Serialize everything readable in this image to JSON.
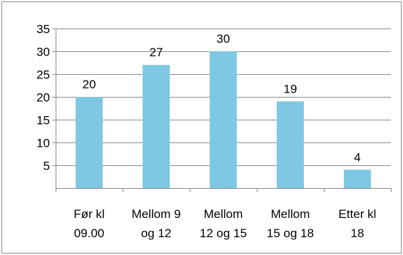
{
  "chart_data": {
    "type": "bar",
    "categories": [
      [
        "Før kl",
        "09.00"
      ],
      [
        "Mellom 9",
        "og 12"
      ],
      [
        "Mellom",
        "12 og 15"
      ],
      [
        "Mellom",
        "15 og 18"
      ],
      [
        "Etter kl",
        "18"
      ]
    ],
    "values": [
      20,
      27,
      30,
      19,
      4
    ],
    "data_labels": [
      "20",
      "27",
      "30",
      "19",
      "4"
    ],
    "ylim": [
      0,
      35
    ],
    "yticks": [
      {
        "value": 5,
        "label": "5"
      },
      {
        "value": 10,
        "label": "10"
      },
      {
        "value": 15,
        "label": "15"
      },
      {
        "value": 20,
        "label": "20"
      },
      {
        "value": 25,
        "label": "25"
      },
      {
        "value": 30,
        "label": "30"
      },
      {
        "value": 35,
        "label": "35"
      }
    ],
    "grid": true,
    "legend": "none",
    "colors": {
      "bar": "#7EC8E3",
      "grid": "#8c8c8c",
      "axis": "#8c8c8c",
      "frame": "#8c8c8c"
    }
  }
}
